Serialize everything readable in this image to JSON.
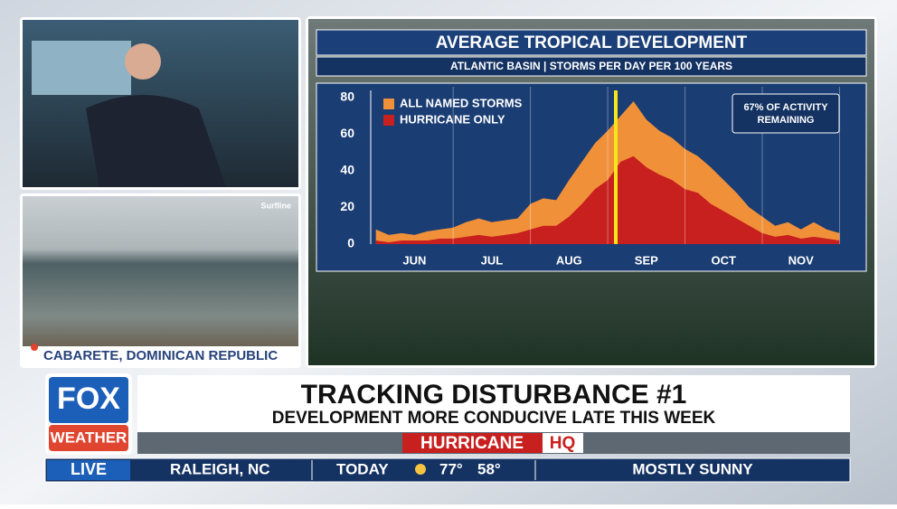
{
  "chart_data": {
    "type": "area",
    "title": "AVERAGE TROPICAL DEVELOPMENT",
    "subtitle": "ATLANTIC BASIN | STORMS PER DAY PER 100 YEARS",
    "annotation": [
      "67% OF ACTIVITY",
      "REMAINING"
    ],
    "categories": [
      null,
      null,
      null,
      "JUN",
      null,
      null,
      null,
      null,
      null,
      "JUL",
      null,
      null,
      null,
      null,
      null,
      "AUG",
      null,
      null,
      null,
      null,
      null,
      "SEP",
      null,
      null,
      null,
      null,
      null,
      "OCT",
      null,
      null,
      null,
      null,
      null,
      "NOV",
      null,
      null,
      null
    ],
    "series": [
      {
        "name": "ALL NAMED STORMS",
        "color": "#f0913a",
        "values": [
          8,
          5,
          6,
          5,
          7,
          8,
          9,
          12,
          14,
          12,
          13,
          14,
          22,
          25,
          24,
          35,
          45,
          55,
          62,
          70,
          78,
          68,
          62,
          58,
          52,
          48,
          42,
          35,
          28,
          20,
          15,
          10,
          12,
          8,
          12,
          8,
          6
        ]
      },
      {
        "name": "HURRICANE ONLY",
        "color": "#c8201e",
        "values": [
          2,
          1,
          2,
          2,
          2,
          3,
          3,
          4,
          5,
          4,
          5,
          6,
          8,
          10,
          10,
          15,
          22,
          30,
          35,
          45,
          48,
          42,
          38,
          35,
          30,
          28,
          22,
          18,
          14,
          10,
          6,
          4,
          5,
          3,
          4,
          3,
          2
        ]
      }
    ],
    "ylim": [
      0,
      80
    ],
    "yticks": [
      0,
      20,
      40,
      60,
      80
    ]
  },
  "video": {
    "watermark": "Surfline",
    "location": "CABARETE, DOMINICAN REPUBLIC"
  },
  "lower_third": {
    "logo": [
      "FOX",
      "WEATHER"
    ],
    "headline": "TRACKING DISTURBANCE #1",
    "subheadline": "DEVELOPMENT MORE CONDUCIVE LATE THIS WEEK",
    "brand": [
      "HURRICANE",
      "HQ"
    ]
  },
  "ticker": {
    "live": "LIVE",
    "city": "RALEIGH, NC",
    "day": "TODAY",
    "high": "77°",
    "low": "58°",
    "forecast": "MOSTLY SUNNY"
  }
}
